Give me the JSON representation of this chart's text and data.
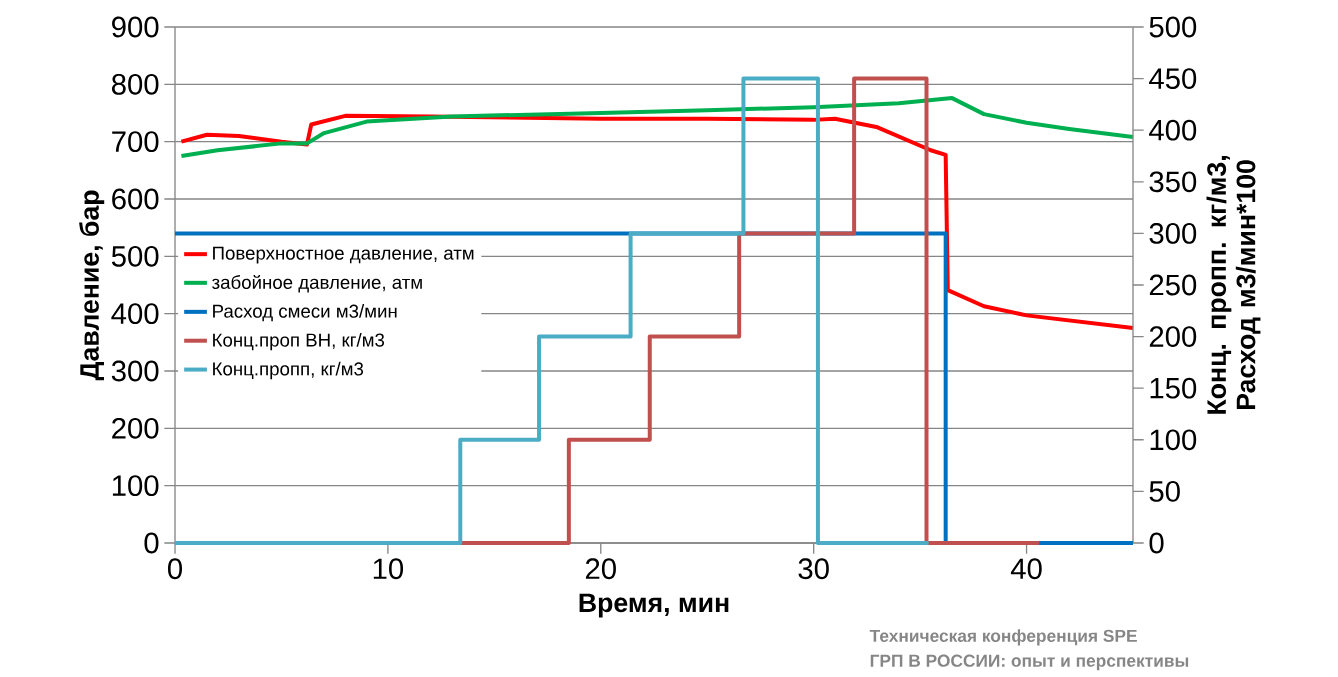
{
  "chart_data": {
    "type": "line",
    "xlabel": "Время, мин",
    "ylabel": "Давление, бар",
    "y2label": "Конц. пропп. кг/м3, Расход м3/мин*100",
    "xlim": [
      0,
      45
    ],
    "xticks": [
      0,
      10,
      20,
      30,
      40
    ],
    "ylim": [
      0,
      900
    ],
    "yticks": [
      0,
      100,
      200,
      300,
      400,
      500,
      600,
      700,
      800,
      900
    ],
    "y2lim": [
      0,
      500
    ],
    "y2ticks": [
      0,
      50,
      100,
      150,
      200,
      250,
      300,
      350,
      400,
      450,
      500
    ],
    "grid": "y",
    "legend": "left",
    "annotations": [
      "Техническая конференция SPE",
      "ГРП В РОССИИ: опыт и перспективы"
    ],
    "series": [
      {
        "name": "Поверхностное давление, атм",
        "color": "#ff0000",
        "type": "line",
        "x": [
          0.3,
          1.5,
          3,
          5,
          6.2,
          6.4,
          8,
          12,
          20,
          25,
          30,
          31,
          33,
          35.5,
          36.2,
          36.3,
          38,
          40,
          45
        ],
        "values": [
          700,
          712,
          710,
          700,
          695,
          730,
          745,
          744,
          740,
          740,
          738,
          740,
          725,
          685,
          677,
          441,
          413,
          397,
          375
        ]
      },
      {
        "name": "забойное давление,  атм",
        "color": "#00b050",
        "type": "line",
        "x": [
          0.3,
          2,
          5,
          6.2,
          7,
          9,
          13,
          20,
          25,
          30,
          34,
          36.5,
          38,
          40,
          42,
          45
        ],
        "values": [
          675,
          685,
          697,
          697,
          715,
          735,
          744,
          750,
          755,
          760,
          767,
          776,
          748,
          733,
          722,
          708
        ]
      },
      {
        "name": "Расход смеси м3/мин",
        "color": "#0070c0",
        "type": "step",
        "axis": "y2",
        "x": [
          0,
          36.2,
          36.2,
          45
        ],
        "values": [
          300,
          300,
          0,
          0
        ]
      },
      {
        "name": "Конц.проп ВН, кг/м3",
        "color": "#c0504d",
        "type": "step",
        "axis": "y2",
        "x": [
          13.4,
          18.5,
          18.5,
          22.3,
          22.3,
          26.5,
          26.5,
          31.9,
          31.9,
          35.3,
          35.3,
          40.6
        ],
        "values": [
          0,
          0,
          100,
          100,
          200,
          200,
          300,
          300,
          450,
          450,
          0,
          0
        ]
      },
      {
        "name": "Конц.пропп, кг/м3",
        "color": "#4bacc6",
        "type": "step",
        "axis": "y2",
        "x": [
          0,
          13.4,
          13.4,
          17.1,
          17.1,
          21.4,
          21.4,
          26.7,
          26.7,
          30.2,
          30.2,
          35.4
        ],
        "values": [
          0,
          0,
          100,
          100,
          200,
          200,
          300,
          300,
          450,
          450,
          0,
          0
        ]
      }
    ]
  }
}
